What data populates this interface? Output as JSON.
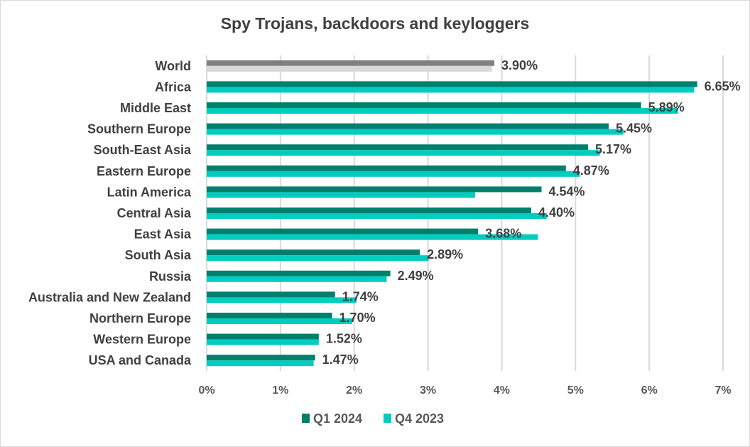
{
  "chart_data": {
    "type": "bar",
    "orientation": "horizontal",
    "title": "Spy Trojans, backdoors and keyloggers",
    "xlabel": "",
    "ylabel": "",
    "xlim": [
      0,
      7
    ],
    "x_ticks": [
      "0%",
      "1%",
      "2%",
      "3%",
      "4%",
      "5%",
      "6%",
      "7%"
    ],
    "grid": "vertical",
    "legend_position": "bottom",
    "categories": [
      "World",
      "Africa",
      "Middle East",
      "Southern Europe",
      "South-East Asia",
      "Eastern Europe",
      "Latin America",
      "Central Asia",
      "East Asia",
      "South Asia",
      "Russia",
      "Australia and New Zealand",
      "Northern Europe",
      "Western Europe",
      "USA and Canada"
    ],
    "series": [
      {
        "name": "Q1 2024",
        "color": "#00806c",
        "highlight_color": "#808080",
        "values": [
          3.9,
          6.65,
          5.89,
          5.45,
          5.17,
          4.87,
          4.54,
          4.4,
          3.68,
          2.89,
          2.49,
          1.74,
          1.7,
          1.52,
          1.47
        ]
      },
      {
        "name": "Q4 2023",
        "color": "#00ccc0",
        "highlight_color": "#d9d9d9",
        "values": [
          3.87,
          6.61,
          6.39,
          5.65,
          5.33,
          5.06,
          3.64,
          4.61,
          4.49,
          3.01,
          2.44,
          2.03,
          1.97,
          1.52,
          1.45
        ]
      }
    ],
    "data_labels": [
      "3.90%",
      "6.65%",
      "5.89%",
      "5.45%",
      "5.17%",
      "4.87%",
      "4.54%",
      "4.40%",
      "3.68%",
      "2.89%",
      "2.49%",
      "1.74%",
      "1.70%",
      "1.52%",
      "1.47%"
    ],
    "highlighted_category": "World"
  }
}
